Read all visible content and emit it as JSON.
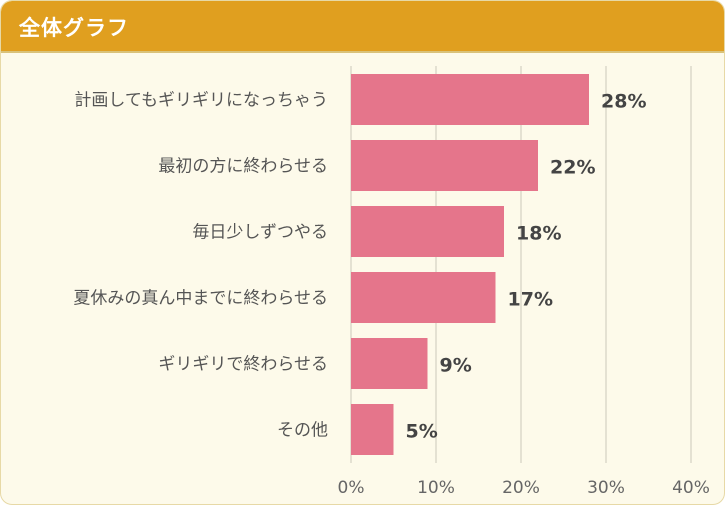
{
  "header": {
    "title": "全体グラフ"
  },
  "colors": {
    "header_bg": "#e09f1f",
    "bar": "#e5758b",
    "panel_bg": "#fdfaea"
  },
  "chart_data": {
    "type": "bar",
    "orientation": "horizontal",
    "title": "全体グラフ",
    "categories": [
      "計画してもギリギリになっちゃう",
      "最初の方に終わらせる",
      "毎日少しずつやる",
      "夏休みの真ん中までに終わらせる",
      "ギリギリで終わらせる",
      "その他"
    ],
    "values": [
      28,
      22,
      18,
      17,
      9,
      5
    ],
    "value_labels": [
      "28%",
      "22%",
      "18%",
      "17%",
      "9%",
      "5%"
    ],
    "xlim": [
      0,
      40
    ],
    "xticks": [
      0,
      10,
      20,
      30,
      40
    ],
    "xtick_labels": [
      "0%",
      "10%",
      "20%",
      "30%",
      "40%"
    ],
    "xlabel": "",
    "ylabel": "",
    "grid": true
  }
}
